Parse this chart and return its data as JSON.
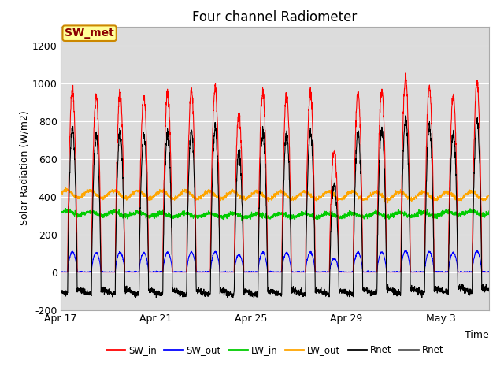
{
  "title": "Four channel Radiometer",
  "xlabel": "Time",
  "ylabel": "Solar Radiation (W/m2)",
  "annotation": "SW_met",
  "ylim": [
    -200,
    1300
  ],
  "yticks": [
    -200,
    0,
    200,
    400,
    600,
    800,
    1000,
    1200
  ],
  "plot_bg_color": "#dcdcdc",
  "grid_color": "#ffffff",
  "legend_entries": [
    "SW_in",
    "SW_out",
    "LW_in",
    "LW_out",
    "Rnet",
    "Rnet"
  ],
  "legend_colors": [
    "#ff0000",
    "#0000ff",
    "#00cc00",
    "#ffa500",
    "#000000",
    "#555555"
  ],
  "days": [
    "Apr 17",
    "Apr 21",
    "Apr 25",
    "Apr 29",
    "May 3"
  ],
  "x_tick_pos": [
    0,
    4,
    8,
    12,
    16
  ],
  "n_days": 18,
  "title_fontsize": 12,
  "axis_fontsize": 9,
  "tick_fontsize": 9
}
